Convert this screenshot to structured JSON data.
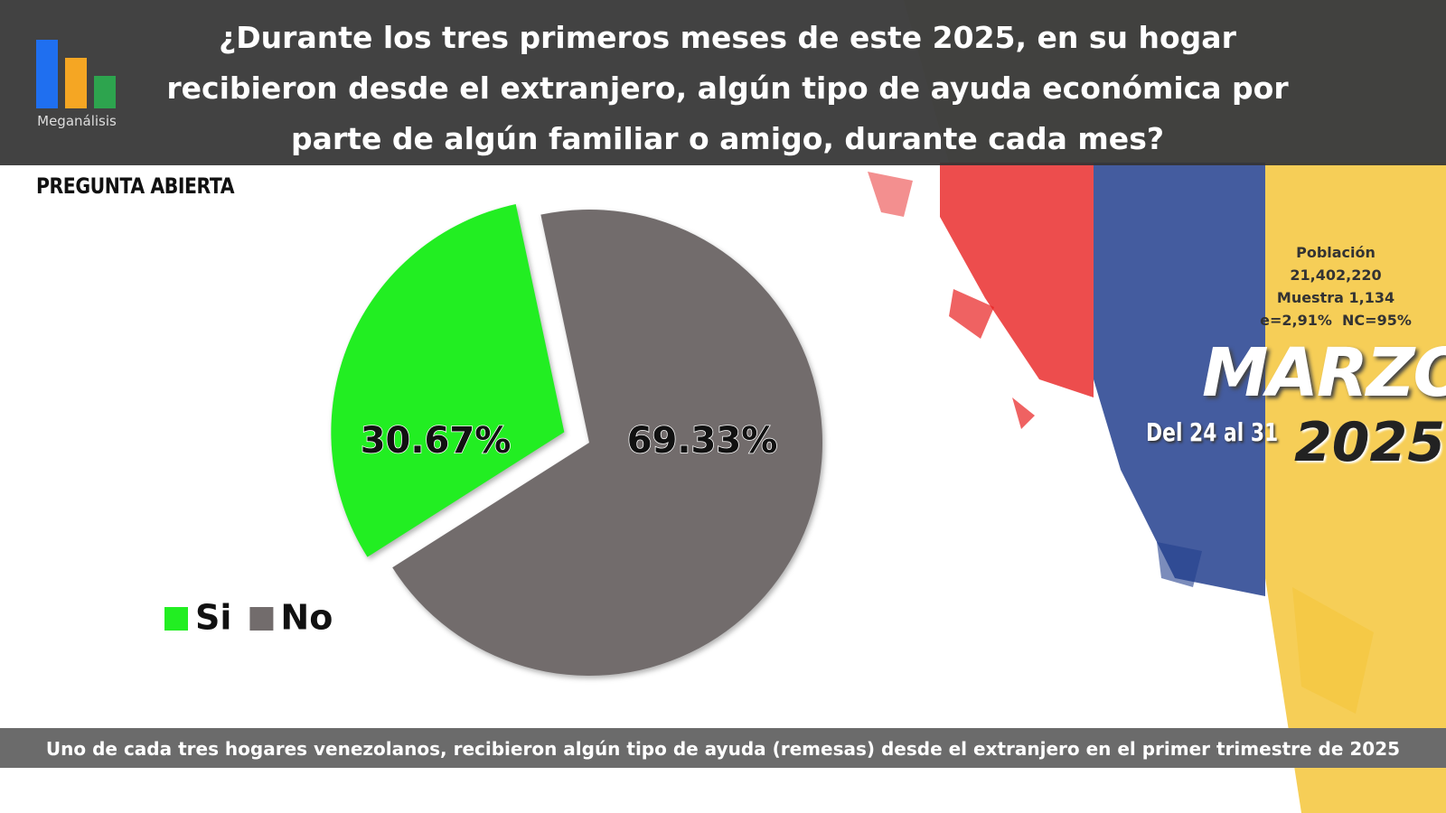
{
  "logo": "Meganálisis",
  "chart_data": {
    "type": "pie",
    "title": "¿Durante los tres primeros meses de este 2025, en su hogar recibieron desde el extranjero, algún tipo de ayuda económica por parte de algún familiar o amigo, durante cada mes?",
    "subtitle": "PREGUNTA ABIERTA",
    "categories": [
      "Si",
      "No"
    ],
    "values": [
      30.67,
      69.33
    ],
    "value_labels": [
      "30.67%",
      "69.33%"
    ],
    "colors": [
      "#22ee22",
      "#726c6c"
    ]
  },
  "sample": {
    "population_label": "Población",
    "population": "21,402,220",
    "sample": "Muestra 1,134",
    "error": "e=2,91%  NC=95%"
  },
  "period": {
    "month": "MARZO",
    "range": "Del 24 al 31",
    "year": "2025"
  },
  "footer": "Uno de cada tres hogares venezolanos, recibieron algún tipo de ayuda (remesas) desde el extranjero en el primer trimestre de 2025"
}
